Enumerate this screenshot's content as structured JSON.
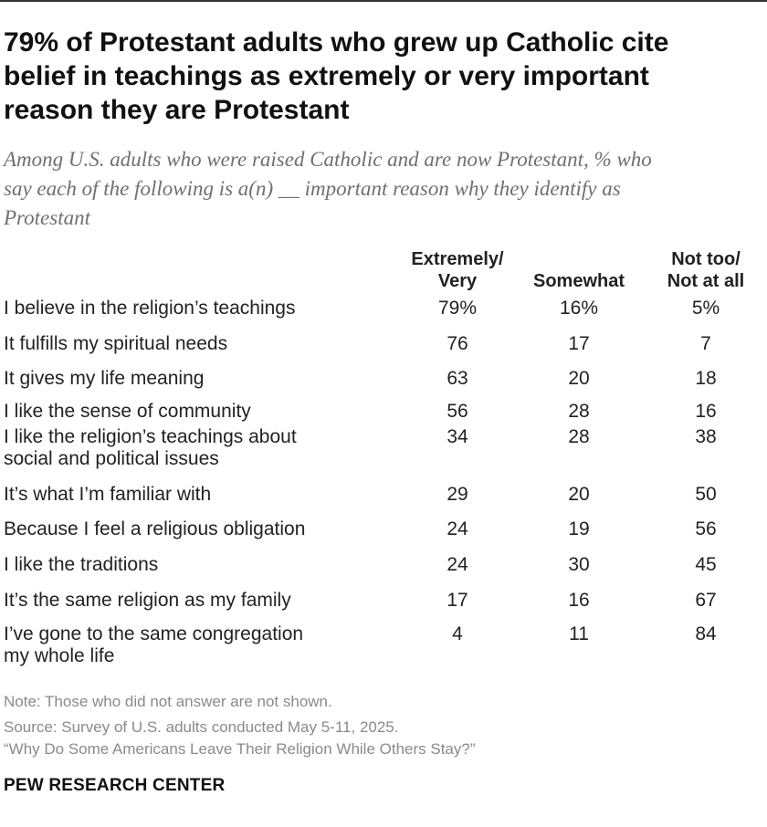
{
  "title_lines": [
    "79% of Protestant adults who grew up Catholic cite",
    "belief in teachings as extremely or very important",
    "reason they are Protestant"
  ],
  "subtitle_lines": [
    "Among U.S. adults who were raised Catholic and are now Protestant, % who",
    "say each of the following is a(n) __ important reason why they identify as",
    "Protestant"
  ],
  "chart_data": {
    "type": "table",
    "columns": [
      {
        "lines": [
          "Extremely/",
          "Very"
        ]
      },
      {
        "lines": [
          "Somewhat"
        ]
      },
      {
        "lines": [
          "Not too/",
          "Not at all"
        ]
      }
    ],
    "rows": [
      {
        "label": [
          "I believe in the religion’s teachings"
        ],
        "values": [
          "79%",
          "16%",
          "5%"
        ]
      },
      {
        "label": [
          "It fulfills my spiritual needs"
        ],
        "values": [
          "76",
          "17",
          "7"
        ]
      },
      {
        "label": [
          "It gives my life meaning"
        ],
        "values": [
          "63",
          "20",
          "18"
        ]
      },
      {
        "label": [
          "I like the sense of community"
        ],
        "values": [
          "56",
          "28",
          "16"
        ]
      },
      {
        "label": [
          "I like the religion’s teachings about",
          "social and political issues"
        ],
        "values": [
          "34",
          "28",
          "38"
        ]
      },
      {
        "label": [
          "It’s what I’m familiar with"
        ],
        "values": [
          "29",
          "20",
          "50"
        ]
      },
      {
        "label": [
          "Because I feel a religious obligation"
        ],
        "values": [
          "24",
          "19",
          "56"
        ]
      },
      {
        "label": [
          "I like the traditions"
        ],
        "values": [
          "24",
          "30",
          "45"
        ]
      },
      {
        "label": [
          "It’s the same religion as my family"
        ],
        "values": [
          "17",
          "16",
          "67"
        ]
      },
      {
        "label": [
          "I’ve gone to the same congregation",
          "my whole life"
        ],
        "values": [
          "4",
          "11",
          "84"
        ]
      }
    ]
  },
  "footer": {
    "note": "Note: Those who did not answer are not shown.",
    "source": "Source: Survey of U.S. adults conducted May 5-11, 2025.",
    "report": "“Why Do Some Americans Leave Their Religion While Others Stay?”",
    "brand": "PEW RESEARCH CENTER"
  }
}
